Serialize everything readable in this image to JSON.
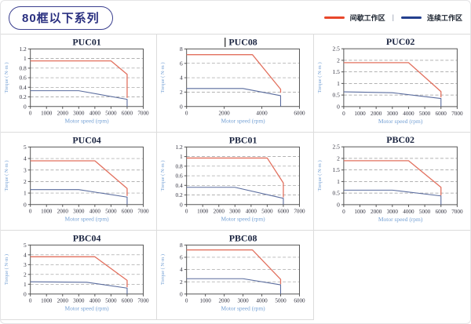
{
  "header": {
    "title": "80框以下系列",
    "legend_separator": "|",
    "legend": [
      {
        "label": "间歇工作区",
        "color": "#e8472b"
      },
      {
        "label": "连续工作区",
        "color": "#24408e"
      }
    ]
  },
  "styles": {
    "line_intermittent": "#e2705e",
    "line_continuous": "#5a6c9e",
    "grid_line": "#999999",
    "axis_box": "#555555",
    "tick_text": "#333340",
    "axis_label_text": "#74a0d4",
    "title_text": "#1a2440",
    "cell_border": "#dcdcdc"
  },
  "chart_data": [
    {
      "type": "line",
      "title": "PUC01",
      "xlabel": "Motor speed (rpm)",
      "ylabel": "Torque ( N·m )",
      "xlim": [
        0,
        7000
      ],
      "ylim": [
        0,
        1.2
      ],
      "xticks": [
        0,
        1000,
        2000,
        3000,
        4000,
        5000,
        6000,
        7000
      ],
      "yticks": [
        0,
        0.2,
        0.4,
        0.6,
        0.8,
        1,
        1.2
      ],
      "grid": "dashed-horizontal",
      "legend_position": "none",
      "series": [
        {
          "name": "间歇工作区",
          "points": [
            [
              0,
              0.95
            ],
            [
              5000,
              0.95
            ],
            [
              6000,
              0.67
            ],
            [
              6000,
              0.18
            ]
          ]
        },
        {
          "name": "连续工作区",
          "points": [
            [
              0,
              0.33
            ],
            [
              3000,
              0.33
            ],
            [
              6000,
              0.15
            ],
            [
              6000,
              0
            ]
          ]
        }
      ]
    },
    {
      "type": "line",
      "title": "PUC08",
      "text_cursor_before_title": true,
      "xlabel": "Motor speed (rpm)",
      "ylabel": "Torque ( N·m )",
      "xlim": [
        0,
        6000
      ],
      "ylim": [
        0,
        8
      ],
      "xticks": [
        0,
        2000,
        4000,
        6000
      ],
      "yticks": [
        0,
        2,
        4,
        6,
        8
      ],
      "grid": "dashed-horizontal",
      "legend_position": "none",
      "series": [
        {
          "name": "间歇工作区",
          "points": [
            [
              0,
              7.2
            ],
            [
              3500,
              7.2
            ],
            [
              5000,
              2.4
            ],
            [
              5000,
              1.9
            ]
          ]
        },
        {
          "name": "连续工作区",
          "points": [
            [
              0,
              2.5
            ],
            [
              3000,
              2.5
            ],
            [
              5000,
              1.5
            ],
            [
              5000,
              0
            ]
          ]
        }
      ]
    },
    {
      "type": "line",
      "title": "PUC02",
      "xlabel": "Motor speed (rpm)",
      "ylabel": "Torque ( N·m )",
      "xlim": [
        0,
        7000
      ],
      "ylim": [
        0,
        2.5
      ],
      "xticks": [
        0,
        1000,
        2000,
        3000,
        4000,
        5000,
        6000,
        7000
      ],
      "yticks": [
        0,
        0.5,
        1,
        1.5,
        2,
        2.5
      ],
      "grid": "dashed-horizontal",
      "legend_position": "none",
      "series": [
        {
          "name": "间歇工作区",
          "points": [
            [
              0,
              1.9
            ],
            [
              4000,
              1.9
            ],
            [
              6000,
              0.65
            ],
            [
              6000,
              0.4
            ]
          ]
        },
        {
          "name": "连续工作区",
          "points": [
            [
              0,
              0.64
            ],
            [
              3000,
              0.6
            ],
            [
              6000,
              0.35
            ],
            [
              6000,
              0
            ]
          ]
        }
      ]
    },
    {
      "type": "line",
      "title": "PUC04",
      "xlabel": "Motor speed (rpm)",
      "ylabel": "Torque ( N·m )",
      "xlim": [
        0,
        7000
      ],
      "ylim": [
        0,
        5
      ],
      "xticks": [
        0,
        1000,
        2000,
        3000,
        4000,
        5000,
        6000,
        7000
      ],
      "yticks": [
        0,
        1,
        2,
        3,
        4,
        5
      ],
      "grid": "dashed-horizontal",
      "legend_position": "none",
      "series": [
        {
          "name": "间歇工作区",
          "points": [
            [
              0,
              3.8
            ],
            [
              4000,
              3.8
            ],
            [
              6000,
              1.4
            ],
            [
              6000,
              0.75
            ]
          ]
        },
        {
          "name": "连续工作区",
          "points": [
            [
              0,
              1.3
            ],
            [
              3000,
              1.3
            ],
            [
              6000,
              0.65
            ],
            [
              6000,
              0
            ]
          ]
        }
      ]
    },
    {
      "type": "line",
      "title": "PBC01",
      "xlabel": "Motor speed (rpm)",
      "ylabel": "Torque ( N·m )",
      "xlim": [
        0,
        7000
      ],
      "ylim": [
        0,
        1.2
      ],
      "xticks": [
        0,
        1000,
        2000,
        3000,
        4000,
        5000,
        6000,
        7000
      ],
      "yticks": [
        0,
        0.2,
        0.4,
        0.6,
        0.8,
        1,
        1.2
      ],
      "grid": "dashed-horizontal",
      "legend_position": "none",
      "series": [
        {
          "name": "间歇工作区",
          "points": [
            [
              0,
              0.97
            ],
            [
              5000,
              0.97
            ],
            [
              6000,
              0.45
            ],
            [
              6000,
              0.15
            ]
          ]
        },
        {
          "name": "连续工作区",
          "points": [
            [
              0,
              0.36
            ],
            [
              3000,
              0.36
            ],
            [
              6000,
              0.13
            ],
            [
              6000,
              0
            ]
          ]
        }
      ]
    },
    {
      "type": "line",
      "title": "PBC02",
      "xlabel": "Motor speed (rpm)",
      "ylabel": "Torque ( N·m )",
      "xlim": [
        0,
        7000
      ],
      "ylim": [
        0,
        2.5
      ],
      "xticks": [
        0,
        1000,
        2000,
        3000,
        4000,
        5000,
        6000,
        7000
      ],
      "yticks": [
        0,
        0.5,
        1,
        1.5,
        2,
        2.5
      ],
      "grid": "dashed-horizontal",
      "legend_position": "none",
      "series": [
        {
          "name": "间歇工作区",
          "points": [
            [
              0,
              1.9
            ],
            [
              4000,
              1.9
            ],
            [
              6000,
              0.75
            ],
            [
              6000,
              0.4
            ]
          ]
        },
        {
          "name": "连续工作区",
          "points": [
            [
              0,
              0.63
            ],
            [
              3000,
              0.63
            ],
            [
              6000,
              0.38
            ],
            [
              6000,
              0
            ]
          ]
        }
      ]
    },
    {
      "type": "line",
      "title": "PBC04",
      "xlabel": "Motor speed (rpm)",
      "ylabel": "Torque ( N·m )",
      "xlim": [
        0,
        7000
      ],
      "ylim": [
        0,
        5
      ],
      "xticks": [
        0,
        1000,
        2000,
        3000,
        4000,
        5000,
        6000,
        7000
      ],
      "yticks": [
        0,
        1,
        2,
        3,
        4,
        5
      ],
      "grid": "dashed-horizontal",
      "legend_position": "none",
      "series": [
        {
          "name": "间歇工作区",
          "points": [
            [
              0,
              3.8
            ],
            [
              4000,
              3.8
            ],
            [
              6000,
              1.4
            ],
            [
              6000,
              0.7
            ]
          ]
        },
        {
          "name": "连续工作区",
          "points": [
            [
              0,
              1.25
            ],
            [
              3500,
              1.2
            ],
            [
              6000,
              0.6
            ],
            [
              6000,
              0
            ]
          ]
        }
      ]
    },
    {
      "type": "line",
      "title": "PBC08",
      "xlabel": "Motor speed (rpm)",
      "ylabel": "Torque ( N·m )",
      "xlim": [
        0,
        6000
      ],
      "ylim": [
        0,
        8
      ],
      "xticks": [
        0,
        1000,
        2000,
        3000,
        4000,
        5000,
        6000
      ],
      "yticks": [
        0,
        2,
        4,
        6,
        8
      ],
      "grid": "dashed-horizontal",
      "legend_position": "none",
      "series": [
        {
          "name": "间歇工作区",
          "points": [
            [
              0,
              7.2
            ],
            [
              3500,
              7.2
            ],
            [
              5000,
              2.4
            ],
            [
              5000,
              1.6
            ]
          ]
        },
        {
          "name": "连续工作区",
          "points": [
            [
              0,
              2.5
            ],
            [
              3000,
              2.5
            ],
            [
              5000,
              1.5
            ],
            [
              5000,
              0
            ]
          ]
        }
      ]
    }
  ]
}
